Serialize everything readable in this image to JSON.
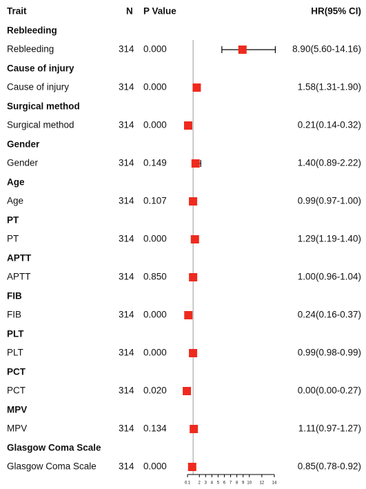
{
  "chart_data": {
    "type": "forest",
    "columns": {
      "trait": "Trait",
      "n": "N",
      "p": "P Value",
      "hr": "HR(95% CI)"
    },
    "categories": [
      "Rebleeding",
      "Cause of injury",
      "Surgical method",
      "Gender",
      "Age",
      "PT",
      "APTT",
      "FIB",
      "PLT",
      "PCT",
      "MPV",
      "Glasgow Coma Scale"
    ],
    "n": [
      314,
      314,
      314,
      314,
      314,
      314,
      314,
      314,
      314,
      314,
      314,
      314
    ],
    "p_values": [
      "0.000",
      "0.000",
      "0.000",
      "0.149",
      "0.107",
      "0.000",
      "0.850",
      "0.000",
      "0.000",
      "0.020",
      "0.134",
      "0.000"
    ],
    "values": [
      8.9,
      1.58,
      0.21,
      1.4,
      0.99,
      1.29,
      1.0,
      0.24,
      0.99,
      0.0,
      1.11,
      0.85
    ],
    "lower": [
      5.6,
      1.31,
      0.14,
      0.89,
      0.97,
      1.19,
      0.96,
      0.16,
      0.98,
      0.0,
      0.97,
      0.78
    ],
    "upper": [
      14.16,
      1.9,
      0.32,
      2.22,
      1.0,
      1.4,
      1.04,
      0.37,
      0.99,
      0.27,
      1.27,
      0.92
    ],
    "value_labels": [
      "8.90(5.60-14.16)",
      "1.58(1.31-1.90)",
      "0.21(0.14-0.32)",
      "1.40(0.89-2.22)",
      "0.99(0.97-1.00)",
      "1.29(1.19-1.40)",
      "1.00(0.96-1.04)",
      "0.24(0.16-0.37)",
      "0.99(0.98-0.99)",
      "0.00(0.00-0.27)",
      "1.11(0.97-1.27)",
      "0.85(0.78-0.92)"
    ],
    "xlim": [
      0.1,
      14
    ],
    "xticks": [
      0.1,
      2,
      3,
      4,
      5,
      6,
      7,
      8,
      9,
      10,
      12,
      14
    ],
    "ref_line": 1,
    "color": "#ee2a1f"
  }
}
